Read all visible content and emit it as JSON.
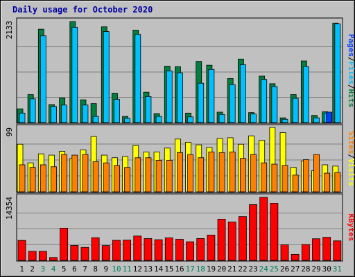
{
  "chart_data": {
    "type": "bar",
    "title": "Daily usage for October 2020",
    "categories": [
      "1",
      "2",
      "3",
      "4",
      "5",
      "6",
      "7",
      "8",
      "9",
      "10",
      "11",
      "12",
      "13",
      "14",
      "15",
      "16",
      "17",
      "18",
      "19",
      "20",
      "21",
      "22",
      "23",
      "24",
      "25",
      "26",
      "27",
      "28",
      "29",
      "30",
      "31"
    ],
    "weekend_days": [
      "3",
      "4",
      "10",
      "11",
      "17",
      "18",
      "24",
      "25",
      "31"
    ],
    "panels": [
      {
        "id": "hits",
        "ymax_label": "2133",
        "ylim": [
          0,
          2133
        ],
        "side_labels": [
          "Pages",
          "/",
          "Files",
          "/",
          "Hits"
        ],
        "series": [
          {
            "name": "Hits",
            "color": "#008040",
            "values": [
              290,
              590,
              1970,
              380,
              520,
              2130,
              480,
              400,
              2020,
              620,
              130,
              1950,
              640,
              190,
              1190,
              1180,
              200,
              1290,
              1210,
              220,
              930,
              1340,
              210,
              980,
              820,
              100,
              590,
              1300,
              150,
              230,
              2100
            ]
          },
          {
            "name": "Files",
            "color": "#00c0ff",
            "values": [
              200,
              500,
              1830,
              340,
              370,
              2010,
              370,
              130,
              1920,
              490,
              90,
              1860,
              550,
              130,
              1090,
              1050,
              120,
              830,
              1120,
              170,
              800,
              1220,
              180,
              910,
              760,
              70,
              510,
              1180,
              100,
              200,
              2080
            ]
          },
          {
            "name": "Pages",
            "color": "#0040ff",
            "values": [
              0,
              0,
              0,
              0,
              0,
              0,
              0,
              0,
              0,
              0,
              0,
              0,
              0,
              0,
              0,
              0,
              0,
              0,
              0,
              0,
              0,
              0,
              0,
              0,
              0,
              0,
              0,
              0,
              0,
              220,
              0
            ]
          }
        ]
      },
      {
        "id": "visits",
        "ymax_label": "99",
        "ylim": [
          0,
          99
        ],
        "side_labels": [
          "Sites",
          "/",
          "Visits"
        ],
        "series": [
          {
            "name": "Visits",
            "color": "#ffff00",
            "values": [
              74,
              45,
              59,
              57,
              63,
              52,
              65,
              86,
              57,
              53,
              55,
              72,
              62,
              62,
              68,
              82,
              77,
              73,
              69,
              83,
              84,
              74,
              87,
              80,
              100,
              92,
              38,
              48,
              33,
              42,
              40
            ]
          },
          {
            "name": "Sites",
            "color": "#ff8000",
            "values": [
              42,
              38,
              42,
              39,
              58,
              57,
              58,
              47,
              45,
              41,
              38,
              53,
              53,
              49,
              49,
              61,
              58,
              53,
              62,
              61,
              62,
              52,
              58,
              45,
              43,
              41,
              26,
              50,
              58,
              29,
              30
            ]
          }
        ]
      },
      {
        "id": "kbytes",
        "ymax_label": "14354",
        "ylim": [
          0,
          14354
        ],
        "side_labels": [
          "KBytes"
        ],
        "series": [
          {
            "name": "KBytes",
            "color": "#ff0000",
            "values": [
              4550,
              2060,
              2060,
              660,
              7350,
              3390,
              2960,
              5160,
              3370,
              4570,
              4610,
              5550,
              4970,
              4710,
              5130,
              4810,
              4240,
              4980,
              5760,
              9390,
              8730,
              9990,
              12700,
              14354,
              13020,
              3530,
              1350,
              3610,
              4930,
              5260,
              4450
            ]
          }
        ]
      }
    ],
    "colors": {
      "background": "#c0c0c0",
      "title": "#0000a0",
      "weekday_tick": "#000000",
      "weekend_tick": "#00805c",
      "gridline": "#808080"
    },
    "grid": true
  }
}
